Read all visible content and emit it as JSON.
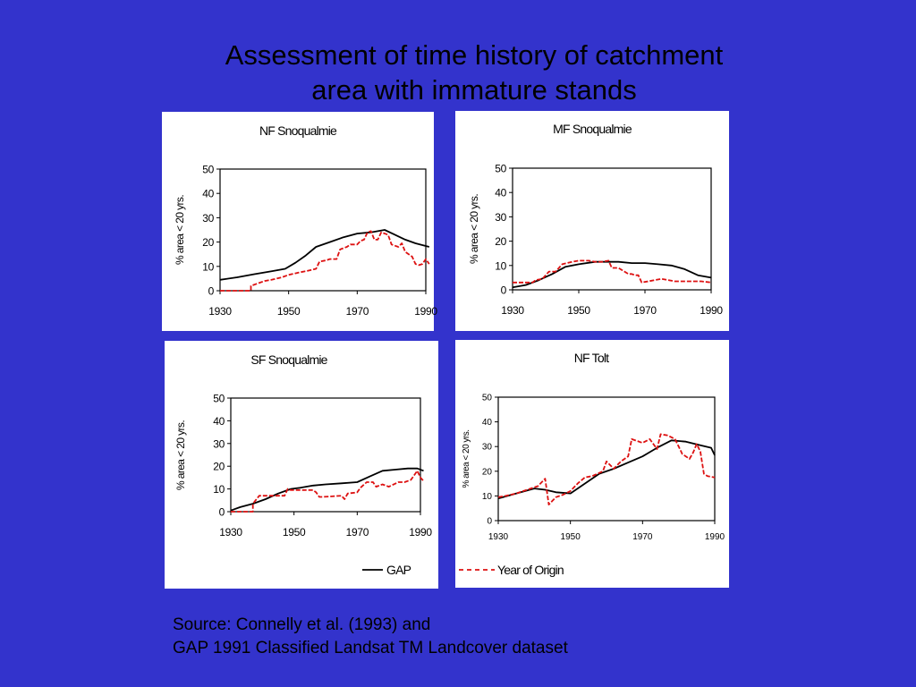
{
  "slide": {
    "title_line1": "Assessment of time history of catchment",
    "title_line2": "area with immature stands",
    "source_line1": "Source:  Connelly et al. (1993) and",
    "source_line2": "GAP 1991 Classified Landsat TM Landcover dataset"
  },
  "colors": {
    "background": "#3333cc",
    "panel": "#ffffff",
    "gap": "#000000",
    "year_of_origin": "#dd1111"
  },
  "legend": {
    "gap_label": "GAP",
    "origin_label": "Year of Origin"
  },
  "chart_data": [
    {
      "type": "line",
      "title": "NF Snoqualmie",
      "ylabel": "% area < 20 yrs.",
      "xlabel": "",
      "xlim": [
        1930,
        1990
      ],
      "ylim": [
        0,
        50
      ],
      "xticks": [
        "1930",
        "1950",
        "1970",
        "1990"
      ],
      "yticks": [
        "0",
        "10",
        "20",
        "30",
        "40",
        "50"
      ],
      "series": [
        {
          "name": "GAP",
          "x": [
            1930,
            1935,
            1940,
            1945,
            1949,
            1952,
            1955,
            1958,
            1962,
            1966,
            1970,
            1974,
            1978,
            1981,
            1984,
            1987,
            1991
          ],
          "y": [
            4.5,
            5.5,
            6.8,
            8,
            9,
            11.5,
            14.5,
            18,
            20,
            22,
            23.5,
            24,
            25,
            23,
            21,
            19.5,
            18
          ]
        },
        {
          "name": "Year of Origin",
          "x": [
            1930,
            1939,
            1939,
            1941,
            1943,
            1945,
            1948,
            1950,
            1953,
            1955,
            1958,
            1959,
            1961,
            1962,
            1964,
            1965,
            1967,
            1968,
            1970,
            1971,
            1972,
            1973,
            1974,
            1975,
            1976,
            1977,
            1979,
            1980,
            1982,
            1983,
            1984,
            1986,
            1987,
            1988,
            1989,
            1990,
            1991
          ],
          "y": [
            0,
            0,
            2,
            3,
            4,
            4.5,
            5.5,
            6.5,
            7.5,
            8,
            9,
            12,
            12.5,
            13,
            13,
            17,
            18,
            19,
            19,
            20.5,
            21,
            24,
            24.5,
            21,
            21,
            24,
            23,
            19,
            18,
            19.5,
            16,
            14,
            11,
            10.5,
            11,
            13,
            11
          ]
        }
      ]
    },
    {
      "type": "line",
      "title": "MF Snoqualmie",
      "ylabel": "% area < 20 yrs.",
      "xlabel": "",
      "xlim": [
        1930,
        1990
      ],
      "ylim": [
        0,
        50
      ],
      "xticks": [
        "1930",
        "1950",
        "1970",
        "1990"
      ],
      "yticks": [
        "0",
        "10",
        "20",
        "30",
        "40",
        "50"
      ],
      "series": [
        {
          "name": "GAP",
          "x": [
            1930,
            1934,
            1938,
            1942,
            1946,
            1950,
            1955,
            1958,
            1962,
            1966,
            1970,
            1974,
            1978,
            1982,
            1986,
            1990
          ],
          "y": [
            1,
            2,
            4,
            6.5,
            9.5,
            10.5,
            11.5,
            11.5,
            11.5,
            11,
            11,
            10.5,
            10,
            8.5,
            6,
            5
          ]
        },
        {
          "name": "Year of Origin",
          "x": [
            1930,
            1936,
            1937,
            1939,
            1941,
            1943,
            1945,
            1948,
            1950,
            1953,
            1955,
            1957,
            1959,
            1960,
            1962,
            1965,
            1966,
            1967,
            1968,
            1969,
            1971,
            1973,
            1975,
            1977,
            1979,
            1981,
            1983,
            1985,
            1987,
            1990
          ],
          "y": [
            3,
            3,
            4,
            4.5,
            7.5,
            7.5,
            10.5,
            11.5,
            12,
            12,
            11.5,
            11.5,
            12,
            9,
            9,
            6.5,
            6.5,
            6,
            6,
            3,
            3.5,
            4,
            4.5,
            4,
            3.5,
            3.5,
            3.5,
            3.5,
            3.5,
            3
          ]
        }
      ]
    },
    {
      "type": "line",
      "title": "SF Snoqualmie",
      "ylabel": "% area < 20 yrs.",
      "xlabel": "",
      "xlim": [
        1930,
        1990
      ],
      "ylim": [
        0,
        50
      ],
      "xticks": [
        "1930",
        "1950",
        "1970",
        "1990"
      ],
      "yticks": [
        "0",
        "10",
        "20",
        "30",
        "40",
        "50"
      ],
      "series": [
        {
          "name": "GAP",
          "x": [
            1930,
            1933,
            1937,
            1941,
            1945,
            1949,
            1952,
            1956,
            1960,
            1965,
            1970,
            1974,
            1978,
            1982,
            1986,
            1989,
            1991
          ],
          "y": [
            0.5,
            2,
            3.5,
            5.5,
            8,
            10,
            10.5,
            11.5,
            12,
            12.5,
            13,
            15.5,
            18,
            18.5,
            19,
            19,
            18
          ]
        },
        {
          "name": "Year of Origin",
          "x": [
            1930,
            1937,
            1937,
            1939,
            1947,
            1948,
            1949,
            1956,
            1957,
            1958,
            1959,
            1965,
            1966,
            1967,
            1970,
            1971,
            1973,
            1975,
            1976,
            1978,
            1980,
            1983,
            1985,
            1987,
            1989,
            1990,
            1991
          ],
          "y": [
            0,
            0,
            3.5,
            7,
            7,
            10,
            9.5,
            9.5,
            8.5,
            6.5,
            6.5,
            7,
            5.5,
            8,
            8.5,
            10.5,
            13,
            13,
            11,
            12,
            11,
            13,
            13,
            14,
            18,
            15,
            13.5
          ]
        }
      ]
    },
    {
      "type": "line",
      "title": "NF Tolt",
      "ylabel": "% area < 20 yrs.",
      "xlabel": "",
      "xlim": [
        1930,
        1990
      ],
      "ylim": [
        0,
        50
      ],
      "xticks": [
        "1930",
        "1950",
        "1970",
        "1990"
      ],
      "yticks": [
        "0",
        "10",
        "20",
        "30",
        "40",
        "50"
      ],
      "series": [
        {
          "name": "GAP",
          "x": [
            1930,
            1935,
            1940,
            1943,
            1946,
            1950,
            1954,
            1958,
            1962,
            1966,
            1970,
            1974,
            1978,
            1982,
            1986,
            1989,
            1990
          ],
          "y": [
            9,
            11,
            13,
            12.5,
            11.5,
            11,
            15,
            19,
            21,
            23.5,
            26,
            29.5,
            32.5,
            32,
            30.5,
            29.5,
            26.5
          ]
        },
        {
          "name": "Year of Origin",
          "x": [
            1930,
            1932,
            1935,
            1938,
            1941,
            1943,
            1944,
            1945,
            1946,
            1947,
            1948,
            1950,
            1952,
            1954,
            1956,
            1959,
            1960,
            1962,
            1964,
            1966,
            1967,
            1970,
            1972,
            1974,
            1975,
            1977,
            1979,
            1980,
            1981,
            1983,
            1984,
            1985,
            1986,
            1987,
            1988,
            1990
          ],
          "y": [
            9.5,
            10,
            11,
            12.5,
            14,
            17,
            6.5,
            8,
            9.5,
            10,
            10.5,
            12,
            15,
            17.5,
            18,
            20,
            24,
            21,
            24,
            26,
            33,
            31.5,
            33,
            29,
            35,
            34.5,
            33,
            30,
            27,
            25,
            27.5,
            31,
            28,
            19,
            18,
            17.5
          ]
        }
      ]
    }
  ]
}
